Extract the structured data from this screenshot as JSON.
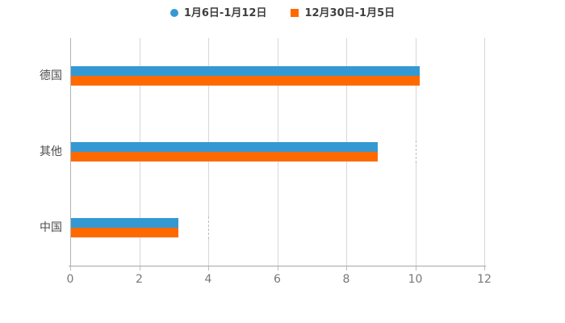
{
  "legend": {
    "items": [
      {
        "label": "1月6日-1月12日",
        "color": "#3499d3",
        "marker": "circle"
      },
      {
        "label": "12月30日-1月5日",
        "color": "#ff6a00",
        "marker": "square"
      }
    ]
  },
  "chart_data": {
    "type": "bar",
    "orientation": "horizontal",
    "title": "",
    "xlabel": "",
    "ylabel": "",
    "categories": [
      "德国",
      "其他",
      "中国"
    ],
    "series": [
      {
        "name": "1月6日-1月12日",
        "color": "#3499d3",
        "values": [
          10.1,
          8.9,
          3.1
        ]
      },
      {
        "name": "12月30日-1月5日",
        "color": "#ff6a00",
        "values": [
          10.1,
          8.9,
          3.1
        ]
      }
    ],
    "xlim": [
      0,
      12
    ],
    "xticks": [
      0,
      2,
      4,
      6,
      8,
      10,
      12
    ],
    "grid": true,
    "legend_position": "top",
    "dash_markers": [
      {
        "row": 1,
        "value": 10
      },
      {
        "row": 2,
        "value": 4
      }
    ]
  }
}
